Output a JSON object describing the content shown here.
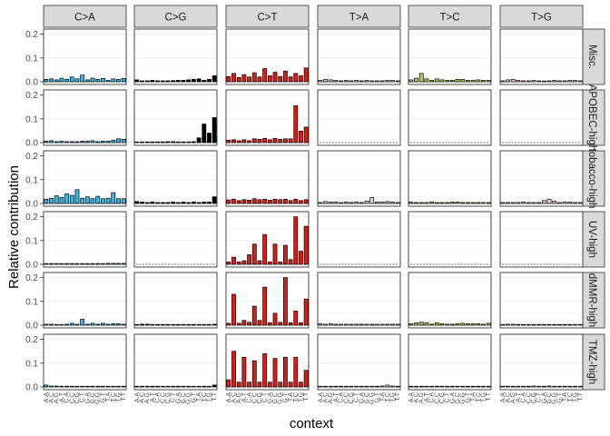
{
  "chart_data": {
    "type": "bar",
    "ylabel": "Relative contribution",
    "xlabel": "context",
    "ylim": [
      0,
      0.21
    ],
    "yticks": [
      0,
      0.1,
      0.2
    ],
    "ytick_labels": [
      "0.0",
      "0.1",
      "0.2"
    ],
    "grid": true,
    "mutation_types": [
      "C>A",
      "C>G",
      "C>T",
      "T>A",
      "T>C",
      "T>G"
    ],
    "mutation_colors": {
      "C>A": "#2EBAED",
      "C>G": "#000000",
      "C>T": "#DE1C14",
      "T>A": "#D4D2D2",
      "T>C": "#ADCC54",
      "T>G": "#F0D0CE"
    },
    "contexts": [
      "A.A",
      "A.C",
      "A.G",
      "A.T",
      "C.A",
      "C.C",
      "C.G",
      "C.T",
      "G.A",
      "G.C",
      "G.G",
      "G.T",
      "T.A",
      "T.C",
      "T.G",
      "T.T"
    ],
    "signatures": [
      {
        "name": "Misc.",
        "values": {
          "C>A": [
            0.01,
            0.012,
            0.008,
            0.015,
            0.01,
            0.02,
            0.012,
            0.028,
            0.008,
            0.015,
            0.01,
            0.014,
            0.006,
            0.012,
            0.01,
            0.014
          ],
          "C>G": [
            0.008,
            0.004,
            0.004,
            0.006,
            0.004,
            0.004,
            0.004,
            0.005,
            0.006,
            0.006,
            0.008,
            0.01,
            0.012,
            0.006,
            0.01,
            0.025
          ],
          "C>T": [
            0.022,
            0.035,
            0.018,
            0.03,
            0.02,
            0.038,
            0.02,
            0.055,
            0.025,
            0.04,
            0.022,
            0.045,
            0.02,
            0.035,
            0.025,
            0.058
          ],
          "T>A": [
            0.006,
            0.01,
            0.008,
            0.006,
            0.004,
            0.006,
            0.004,
            0.006,
            0.004,
            0.006,
            0.004,
            0.004,
            0.004,
            0.006,
            0.006,
            0.004
          ],
          "T>C": [
            0.008,
            0.015,
            0.035,
            0.012,
            0.006,
            0.012,
            0.008,
            0.006,
            0.006,
            0.01,
            0.01,
            0.006,
            0.006,
            0.008,
            0.006,
            0.006
          ],
          "T>G": [
            0.004,
            0.008,
            0.01,
            0.006,
            0.004,
            0.004,
            0.006,
            0.004,
            0.003,
            0.004,
            0.006,
            0.004,
            0.004,
            0.006,
            0.006,
            0.004
          ]
        }
      },
      {
        "name": "APOBEC-high",
        "values": {
          "C>A": [
            0.006,
            0.008,
            0.004,
            0.006,
            0.004,
            0.004,
            0.004,
            0.006,
            0.006,
            0.008,
            0.004,
            0.006,
            0.006,
            0.01,
            0.016,
            0.014
          ],
          "C>G": [
            0.002,
            0.002,
            0.002,
            0.002,
            0.002,
            0.002,
            0.004,
            0.004,
            0.002,
            0.002,
            0.002,
            0.004,
            0.02,
            0.078,
            0.04,
            0.105
          ],
          "C>T": [
            0.01,
            0.012,
            0.008,
            0.012,
            0.008,
            0.016,
            0.014,
            0.018,
            0.012,
            0.018,
            0.014,
            0.016,
            0.016,
            0.155,
            0.048,
            0.065
          ]
        }
      },
      {
        "name": "tobacco-high",
        "values": {
          "C>A": [
            0.018,
            0.022,
            0.032,
            0.025,
            0.04,
            0.034,
            0.058,
            0.022,
            0.028,
            0.02,
            0.03,
            0.02,
            0.022,
            0.045,
            0.02,
            0.02
          ],
          "C>G": [
            0.008,
            0.006,
            0.004,
            0.006,
            0.004,
            0.004,
            0.004,
            0.006,
            0.004,
            0.006,
            0.004,
            0.006,
            0.004,
            0.006,
            0.006,
            0.028
          ],
          "C>T": [
            0.015,
            0.018,
            0.012,
            0.016,
            0.014,
            0.02,
            0.016,
            0.018,
            0.014,
            0.018,
            0.016,
            0.018,
            0.012,
            0.018,
            0.012,
            0.016
          ],
          "T>A": [
            0.004,
            0.008,
            0.006,
            0.006,
            0.004,
            0.006,
            0.004,
            0.006,
            0.004,
            0.01,
            0.025,
            0.006,
            0.006,
            0.008,
            0.006,
            0.004
          ],
          "T>C": [
            0.006,
            0.004,
            0.004,
            0.004,
            0.006,
            0.004,
            0.004,
            0.004,
            0.006,
            0.006,
            0.004,
            0.004,
            0.004,
            0.004,
            0.004,
            0.004
          ],
          "T>G": [
            0.004,
            0.004,
            0.004,
            0.004,
            0.006,
            0.004,
            0.004,
            0.004,
            0.012,
            0.018,
            0.01,
            0.004,
            0.006,
            0.006,
            0.004,
            0.004
          ]
        }
      },
      {
        "name": "UV-high",
        "values": {
          "C>A": [
            0.002,
            0.002,
            0.002,
            0.002,
            0.002,
            0.002,
            0.002,
            0.002,
            0.002,
            0.002,
            0.002,
            0.002,
            0.004,
            0.004,
            0.004,
            0.004
          ],
          "C>T": [
            0.01,
            0.03,
            0.01,
            0.015,
            0.04,
            0.085,
            0.015,
            0.125,
            0.01,
            0.085,
            0.01,
            0.08,
            0.02,
            0.2,
            0.055,
            0.16
          ]
        }
      },
      {
        "name": "dMMR-high",
        "values": {
          "C>A": [
            0.004,
            0.004,
            0.003,
            0.003,
            0.004,
            0.008,
            0.004,
            0.025,
            0.004,
            0.008,
            0.004,
            0.008,
            0.004,
            0.006,
            0.006,
            0.004
          ],
          "C>G": [
            0.002,
            0.004,
            0.004,
            0.002,
            0.002,
            0.002,
            0.002,
            0.002,
            0.002,
            0.002,
            0.002,
            0.002,
            0.002,
            0.002,
            0.002,
            0.004
          ],
          "C>T": [
            0.008,
            0.13,
            0.008,
            0.02,
            0.012,
            0.08,
            0.02,
            0.16,
            0.01,
            0.05,
            0.012,
            0.2,
            0.01,
            0.06,
            0.01,
            0.11
          ],
          "T>A": [
            0.006,
            0.004,
            0.006,
            0.004,
            0.004,
            0.004,
            0.004,
            0.004,
            0.004,
            0.004,
            0.004,
            0.004,
            0.004,
            0.004,
            0.004,
            0.004
          ],
          "T>C": [
            0.006,
            0.01,
            0.012,
            0.01,
            0.004,
            0.01,
            0.006,
            0.004,
            0.004,
            0.006,
            0.008,
            0.006,
            0.006,
            0.006,
            0.004,
            0.008
          ],
          "T>G": [
            0.002,
            0.004,
            0.004,
            0.002,
            0.002,
            0.002,
            0.002,
            0.002,
            0.002,
            0.002,
            0.002,
            0.002,
            0.002,
            0.002,
            0.002,
            0.002
          ]
        }
      },
      {
        "name": "TMZ-high",
        "values": {
          "C>A": [
            0.008,
            0.004,
            0.004,
            0.002,
            0.002,
            0.002,
            0.002,
            0.002,
            0.002,
            0.002,
            0.002,
            0.002,
            0.002,
            0.002,
            0.002,
            0.002
          ],
          "C>G": [
            0.002,
            0.002,
            0.002,
            0.002,
            0.002,
            0.002,
            0.002,
            0.002,
            0.002,
            0.002,
            0.002,
            0.002,
            0.002,
            0.002,
            0.002,
            0.008
          ],
          "C>T": [
            0.03,
            0.15,
            0.02,
            0.125,
            0.02,
            0.11,
            0.02,
            0.14,
            0.02,
            0.12,
            0.02,
            0.125,
            0.02,
            0.125,
            0.02,
            0.07
          ],
          "T>A": [
            0.002,
            0.002,
            0.002,
            0.002,
            0.002,
            0.002,
            0.002,
            0.002,
            0.002,
            0.002,
            0.002,
            0.002,
            0.004,
            0.008,
            0.004,
            0.002
          ],
          "T>C": [
            0.002,
            0.002,
            0.002,
            0.002,
            0.002,
            0.002,
            0.002,
            0.002,
            0.002,
            0.002,
            0.002,
            0.002,
            0.002,
            0.002,
            0.002,
            0.002
          ],
          "T>G": [
            0.002,
            0.002,
            0.002,
            0.002,
            0.002,
            0.002,
            0.004,
            0.002,
            0.002,
            0.004,
            0.002,
            0.002,
            0.002,
            0.002,
            0.002,
            0.002
          ]
        }
      }
    ]
  }
}
